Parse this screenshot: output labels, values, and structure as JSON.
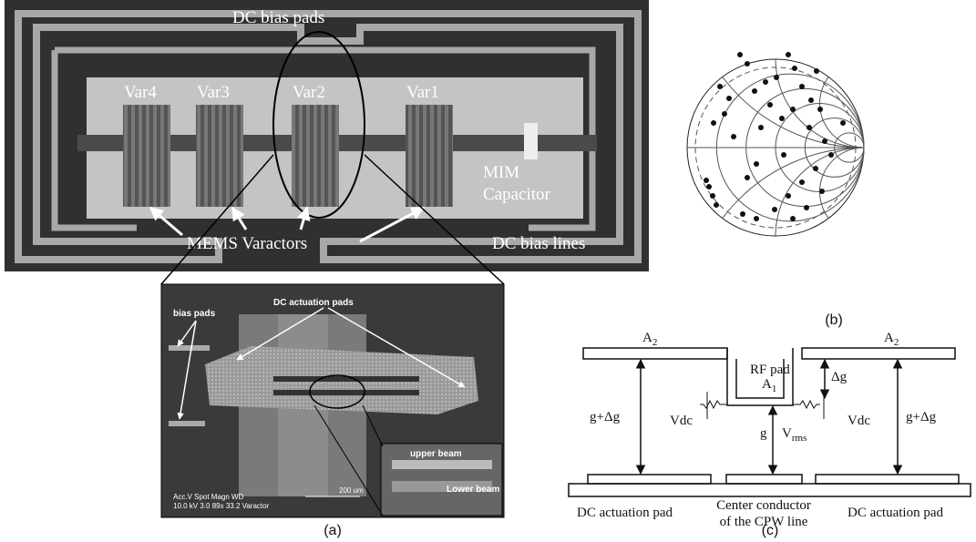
{
  "panel_a": {
    "label": "(a)",
    "photo": {
      "dc_bias_pads": "DC bias pads",
      "varactors": [
        "Var4",
        "Var3",
        "Var2",
        "Var1"
      ],
      "mim_capacitor": [
        "MIM",
        "Capacitor"
      ],
      "mems_varactors": "MEMS Varactors",
      "dc_bias_lines": "DC bias lines"
    },
    "sem": {
      "dc_actuation_pads": "DC actuation pads",
      "bias_pads": "bias pads",
      "upper_beam": "upper beam",
      "lower_beam": "Lower beam",
      "info_header": "Acc.V  Spot Magn   WD",
      "info_values": "10.0 kV 3.0  89x     33.2 Varactor",
      "scale": "200 um"
    }
  },
  "panel_b": {
    "label": "(b)"
  },
  "panel_c": {
    "label": "(c)",
    "a2_left": {
      "main": "A",
      "sub": "2"
    },
    "a2_right": {
      "main": "A",
      "sub": "2"
    },
    "rf_pad": "RF pad",
    "a1": {
      "main": "A",
      "sub": "1"
    },
    "delta_g": "Δg",
    "g_plus_dg_left": "g+Δg",
    "g_plus_dg_right": "g+Δg",
    "vdc_left": "Vdc",
    "vdc_right": "Vdc",
    "g": "g",
    "vrms": {
      "main": "V",
      "sub": "rms"
    },
    "left_pad": "DC actuation pad",
    "center": [
      "Center conductor",
      "of the CPW line"
    ],
    "right_pad": "DC actuation pad"
  }
}
